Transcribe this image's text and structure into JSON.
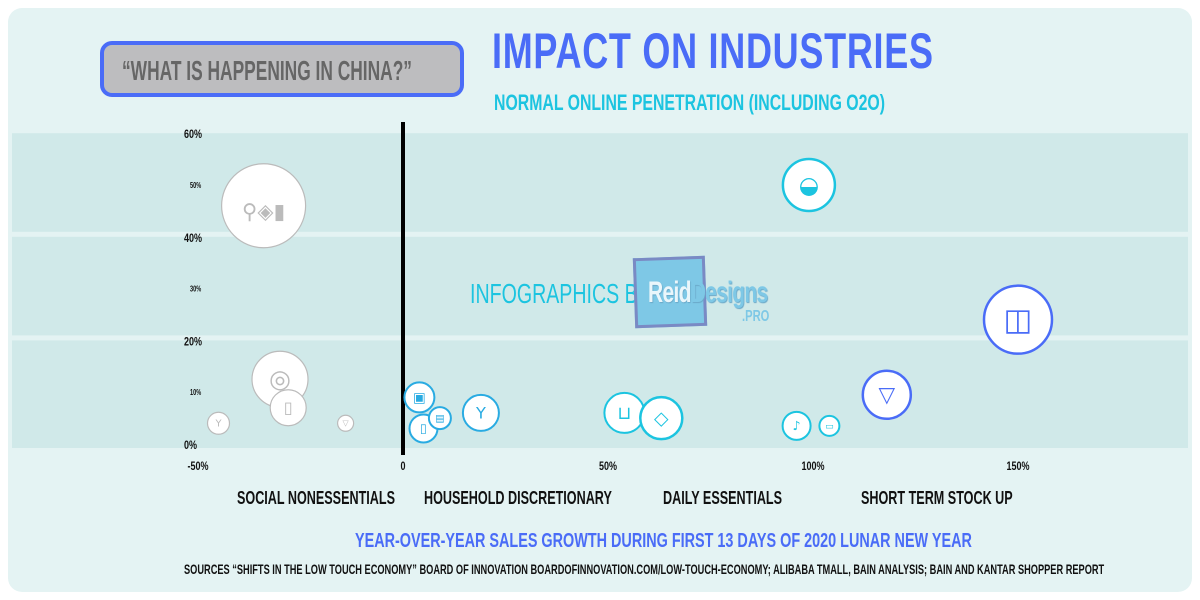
{
  "callout": "“WHAT IS HAPPENING IN CHINA?”",
  "credit": {
    "prefix": "INFOGRAPHICS BY",
    "logo_text": "ReidDesigns.PRO"
  },
  "colors": {
    "background": "#e4f3f3",
    "band": "#d0e9e9",
    "title": "#4a6cf7",
    "subtitle": "#1cc4e0",
    "social": "#bbbbbb",
    "household": "#29abe2",
    "daily": "#1cc4e0",
    "stockup": "#4a6cf7"
  },
  "chart_data": {
    "type": "scatter",
    "title": "IMPACT ON INDUSTRIES",
    "subtitle": "NORMAL ONLINE PENETRATION (INCLUDING O2O)",
    "xlabel": "YEAR-OVER-YEAR SALES GROWTH DURING FIRST 13 DAYS OF 2020 LUNAR NEW YEAR",
    "ylabel": "",
    "xlim": [
      -50,
      180
    ],
    "ylim": [
      0,
      60
    ],
    "x_ticks": [
      "-50%",
      "0",
      "50%",
      "100%",
      "150%"
    ],
    "x_tick_values": [
      -50,
      0,
      50,
      100,
      150
    ],
    "y_ticks_major": [
      "60%",
      "40%",
      "20%",
      "0%"
    ],
    "y_ticks_major_values": [
      60,
      40,
      20,
      0
    ],
    "y_ticks_minor": [
      "50%",
      "30%",
      "10%"
    ],
    "y_ticks_minor_values": [
      50,
      30,
      10
    ],
    "grid": true,
    "categories": [
      "SOCIAL NONESSENTIALS",
      "HOUSEHOLD DISCRETIONARY",
      "DAILY ESSENTIALS",
      "SHORT TERM STOCK UP"
    ],
    "series": [
      {
        "name": "SOCIAL NONESSENTIALS",
        "color_key": "social",
        "points": [
          {
            "icon": "cosmetics-icon",
            "x": -34,
            "y": 46
          },
          {
            "icon": "candy-icon",
            "x": -30,
            "y": 12.5
          },
          {
            "icon": "toothpaste-icon",
            "x": -28,
            "y": 7
          },
          {
            "icon": "wine-glass-icon",
            "x": -45,
            "y": 4
          },
          {
            "icon": "beer-glass-icon",
            "x": -14,
            "y": 4
          }
        ]
      },
      {
        "name": "HOUSEHOLD DISCRETIONARY",
        "color_key": "household",
        "points": [
          {
            "icon": "cleaning-products-icon",
            "x": 4,
            "y": 9
          },
          {
            "icon": "bottle-icon",
            "x": 5,
            "y": 3
          },
          {
            "icon": "blender-icon",
            "x": 9,
            "y": 5
          },
          {
            "icon": "cocktail-icon",
            "x": 19,
            "y": 6
          }
        ]
      },
      {
        "name": "DAILY ESSENTIALS",
        "color_key": "daily",
        "points": [
          {
            "icon": "grocery-cart-icon",
            "x": 54,
            "y": 6
          },
          {
            "icon": "soap-icon",
            "x": 63,
            "y": 5
          },
          {
            "icon": "meal-bowl-icon",
            "x": 99,
            "y": 50
          },
          {
            "icon": "chicken-leg-icon",
            "x": 96,
            "y": 3.5
          },
          {
            "icon": "food-box-icon",
            "x": 104,
            "y": 3.5
          }
        ]
      },
      {
        "name": "SHORT TERM STOCK UP",
        "color_key": "stockup",
        "points": [
          {
            "icon": "noodles-icon",
            "x": 118,
            "y": 9.5
          },
          {
            "icon": "toilet-paper-icon",
            "x": 150,
            "y": 24
          }
        ]
      }
    ]
  },
  "sources": "SOURCES  “SHIFTS IN THE LOW TOUCH ECONOMY” BOARD OF INNOVATION BOARDOFINNOVATION.COM/LOW-TOUCH-ECONOMY; ALIBABA TMALL, BAIN ANALYSIS; BAIN AND KANTAR SHOPPER REPORT"
}
